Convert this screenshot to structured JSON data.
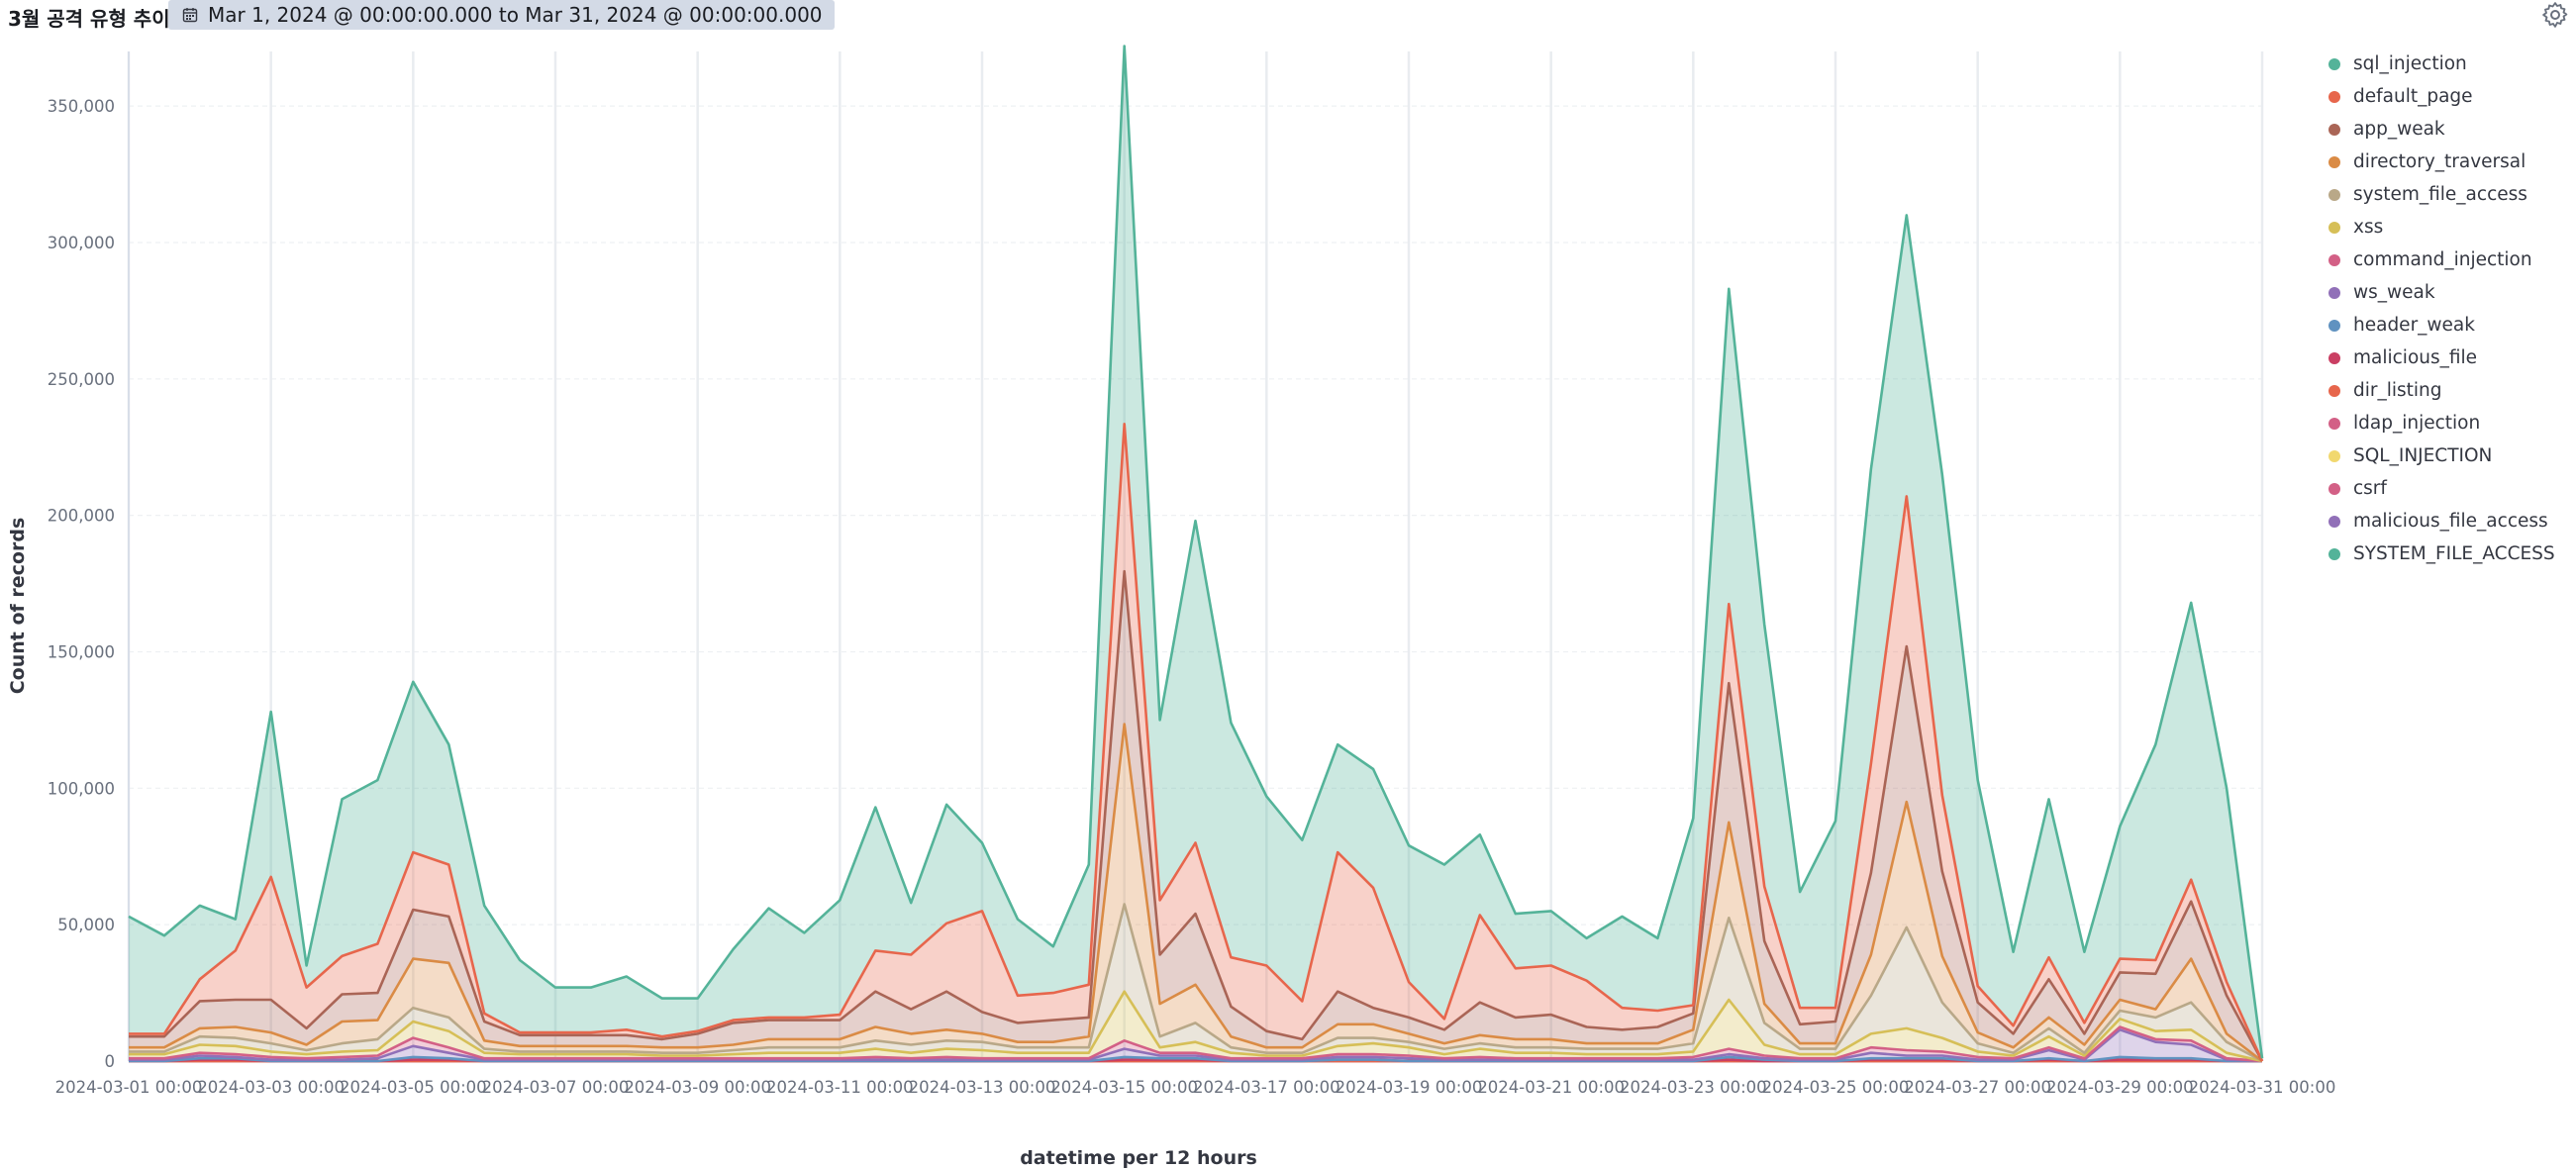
{
  "header": {
    "title": "3월 공격 유형 추이",
    "time_range": "Mar 1, 2024 @ 00:00:00.000 to Mar 31, 2024 @ 00:00:00.000",
    "calendar_icon": "calendar-icon",
    "settings_icon": "gear-icon"
  },
  "chart_data": {
    "type": "area",
    "stacked": true,
    "xlabel": "datetime per 12 hours",
    "ylabel": "Count of records",
    "ylim": [
      0,
      370000
    ],
    "y_ticks": [
      0,
      50000,
      100000,
      150000,
      200000,
      250000,
      300000,
      350000
    ],
    "y_tick_labels": [
      "0",
      "50,000",
      "100,000",
      "150,000",
      "200,000",
      "250,000",
      "300,000",
      "350,000"
    ],
    "x_tick_labels": [
      "2024-03-01 00:00",
      "2024-03-03 00:00",
      "2024-03-05 00:00",
      "2024-03-07 00:00",
      "2024-03-09 00:00",
      "2024-03-11 00:00",
      "2024-03-13 00:00",
      "2024-03-15 00:00",
      "2024-03-17 00:00",
      "2024-03-19 00:00",
      "2024-03-21 00:00",
      "2024-03-23 00:00",
      "2024-03-25 00:00",
      "2024-03-27 00:00",
      "2024-03-29 00:00",
      "2024-03-31 00:00"
    ],
    "grid": true,
    "legend_position": "right",
    "cumulative_top": [
      53000,
      46000,
      57000,
      52000,
      128000,
      35000,
      96000,
      103000,
      139000,
      116000,
      57000,
      37000,
      27000,
      27000,
      31000,
      23000,
      23000,
      41000,
      56000,
      47000,
      59000,
      93000,
      58000,
      94000,
      80000,
      52000,
      42000,
      72000,
      372000,
      125000,
      198000,
      124000,
      97000,
      81000,
      116000,
      107000,
      79000,
      72000,
      83000,
      54000,
      55000,
      45000,
      53000,
      45000,
      89000,
      283000,
      160000,
      62000,
      88000,
      217000,
      310000,
      215000,
      103000,
      40000,
      96000,
      40000,
      86000,
      116000,
      168000,
      100000,
      1000
    ],
    "series": [
      {
        "name": "sql_injection",
        "color": "#54b399",
        "values": [
          42000,
          35000,
          25000,
          8000,
          56000,
          8000,
          53000,
          55000,
          52000,
          41000,
          37000,
          24000,
          14000,
          13000,
          12000,
          12000,
          10000,
          21000,
          36000,
          27000,
          39000,
          44000,
          27000,
          36000,
          24000,
          26000,
          20000,
          23000,
          127000,
          52000,
          103000,
          82000,
          58000,
          58000,
          32000,
          40000,
          44000,
          49000,
          25000,
          18000,
          16000,
          12000,
          19000,
          19000,
          59000,
          110000,
          25000,
          38000,
          55000,
          78000,
          96000,
          64000,
          47000,
          24000,
          40000,
          29000,
          34000,
          52000,
          88000,
          65000,
          0
        ]
      },
      {
        "name": "default_page",
        "color": "#e7664c",
        "values": [
          1000,
          1000,
          8000,
          18000,
          45000,
          15000,
          14000,
          18000,
          21000,
          19000,
          3000,
          1000,
          1000,
          1000,
          2000,
          1000,
          1000,
          1000,
          1000,
          1000,
          2000,
          15000,
          20000,
          25000,
          37000,
          10000,
          10000,
          12000,
          54000,
          20000,
          26000,
          18000,
          24000,
          14000,
          51000,
          44000,
          13000,
          4000,
          32000,
          18000,
          18000,
          17000,
          8000,
          6000,
          3000,
          29000,
          20000,
          6000,
          5000,
          40000,
          55000,
          28000,
          6000,
          3000,
          8000,
          4000,
          5000,
          5000,
          8000,
          5000,
          0
        ]
      },
      {
        "name": "app_weak",
        "color": "#aa6556",
        "values": [
          4000,
          4000,
          10000,
          10000,
          12000,
          6000,
          10000,
          10000,
          18000,
          17000,
          7000,
          4000,
          4000,
          4000,
          4000,
          3000,
          5000,
          8000,
          7000,
          7000,
          7000,
          13000,
          9000,
          14000,
          8000,
          7000,
          8000,
          7000,
          56000,
          18000,
          26000,
          11000,
          6000,
          3000,
          12000,
          6000,
          6000,
          5000,
          12000,
          8000,
          9000,
          6000,
          5000,
          6000,
          6000,
          51000,
          23000,
          7000,
          8000,
          30000,
          57000,
          31000,
          11000,
          5000,
          14000,
          4000,
          10000,
          13000,
          21000,
          14000,
          0
        ]
      },
      {
        "name": "directory_traversal",
        "color": "#da8b45",
        "values": [
          1500,
          1500,
          3000,
          4000,
          4000,
          2000,
          8000,
          7000,
          18000,
          20000,
          3000,
          2000,
          2000,
          2000,
          2000,
          2000,
          2000,
          2000,
          3000,
          3000,
          3000,
          5000,
          4000,
          4000,
          3000,
          2000,
          2000,
          4000,
          66000,
          12000,
          14000,
          4000,
          2000,
          2000,
          5000,
          5000,
          3000,
          2000,
          3000,
          3000,
          3000,
          2000,
          2000,
          2000,
          5000,
          35000,
          7000,
          2000,
          2000,
          15000,
          46000,
          17000,
          4000,
          2000,
          4000,
          3000,
          4000,
          3000,
          16000,
          3000,
          0
        ]
      },
      {
        "name": "system_file_access",
        "color": "#b9a888",
        "values": [
          1000,
          1000,
          3000,
          3000,
          3000,
          1500,
          3000,
          4000,
          5000,
          5000,
          1500,
          1000,
          1000,
          1000,
          1000,
          1000,
          1000,
          1500,
          2000,
          2000,
          2000,
          3000,
          3000,
          3000,
          3000,
          2000,
          2000,
          2000,
          32000,
          4000,
          7000,
          2000,
          1000,
          1000,
          3000,
          2000,
          2000,
          2000,
          2000,
          2000,
          2000,
          2000,
          2000,
          2000,
          3000,
          30000,
          8000,
          2000,
          2000,
          14000,
          37000,
          13000,
          3000,
          1000,
          3000,
          1000,
          3000,
          5000,
          10000,
          4000,
          0
        ]
      },
      {
        "name": "xss",
        "color": "#d6bf57",
        "values": [
          1500,
          1500,
          3000,
          3000,
          2000,
          1500,
          2000,
          2000,
          6000,
          6000,
          2000,
          1500,
          1500,
          1500,
          1500,
          1000,
          1000,
          1500,
          2000,
          2000,
          2000,
          3000,
          2000,
          3000,
          3000,
          2000,
          2000,
          2000,
          18000,
          2000,
          4000,
          2000,
          1000,
          1000,
          3000,
          4000,
          3000,
          1500,
          3000,
          2000,
          2000,
          1500,
          1500,
          1500,
          2000,
          18000,
          4000,
          1500,
          1500,
          5000,
          8000,
          5000,
          2000,
          1000,
          4000,
          1000,
          3000,
          3000,
          4000,
          2000,
          0
        ]
      },
      {
        "name": "command_injection",
        "color": "#d36086",
        "values": [
          500,
          500,
          1000,
          1000,
          1000,
          500,
          1000,
          1000,
          3000,
          2000,
          500,
          500,
          500,
          500,
          500,
          500,
          500,
          500,
          500,
          500,
          500,
          1000,
          500,
          1000,
          500,
          500,
          500,
          500,
          3000,
          1000,
          1000,
          500,
          500,
          500,
          1000,
          1000,
          1000,
          500,
          1000,
          500,
          500,
          500,
          500,
          500,
          1000,
          2000,
          1000,
          500,
          500,
          2000,
          2000,
          1500,
          1000,
          500,
          1000,
          500,
          1000,
          1000,
          1500,
          500,
          0
        ]
      },
      {
        "name": "ws_weak",
        "color": "#9170b8",
        "values": [
          500,
          500,
          1000,
          500,
          500,
          500,
          500,
          1000,
          4000,
          2000,
          500,
          500,
          500,
          500,
          500,
          500,
          500,
          500,
          500,
          500,
          500,
          500,
          500,
          500,
          500,
          500,
          500,
          500,
          3000,
          1000,
          1000,
          500,
          500,
          500,
          1000,
          1000,
          1000,
          500,
          500,
          500,
          500,
          500,
          500,
          500,
          500,
          1000,
          500,
          500,
          500,
          2000,
          1000,
          1000,
          500,
          500,
          3000,
          500,
          10000,
          6000,
          5000,
          500,
          0
        ]
      },
      {
        "name": "header_weak",
        "color": "#6092c0",
        "values": [
          0,
          0,
          500,
          500,
          0,
          0,
          0,
          0,
          1000,
          500,
          0,
          0,
          0,
          0,
          0,
          0,
          0,
          0,
          0,
          0,
          0,
          0,
          0,
          0,
          0,
          0,
          0,
          0,
          1000,
          500,
          500,
          0,
          0,
          0,
          0,
          0,
          0,
          0,
          0,
          0,
          0,
          0,
          0,
          0,
          0,
          1000,
          500,
          0,
          0,
          500,
          500,
          500,
          0,
          0,
          500,
          0,
          1000,
          500,
          500,
          0,
          0
        ]
      },
      {
        "name": "malicious_file",
        "color": "#ca3f63",
        "values": [
          0,
          0,
          500,
          500,
          0,
          0,
          0,
          0,
          500,
          500,
          0,
          0,
          0,
          0,
          0,
          0,
          0,
          0,
          0,
          0,
          0,
          0,
          0,
          0,
          0,
          0,
          0,
          0,
          500,
          500,
          500,
          0,
          0,
          0,
          500,
          500,
          0,
          0,
          0,
          0,
          0,
          0,
          0,
          0,
          0,
          500,
          0,
          0,
          0,
          500,
          500,
          500,
          0,
          0,
          500,
          0,
          500,
          500,
          500,
          0,
          0
        ]
      },
      {
        "name": "dir_listing",
        "color": "#e7664c",
        "values": [
          0,
          0,
          0,
          0,
          0,
          0,
          0,
          0,
          0,
          0,
          0,
          0,
          0,
          0,
          0,
          0,
          0,
          0,
          0,
          0,
          0,
          0,
          0,
          0,
          0,
          0,
          0,
          0,
          0,
          0,
          0,
          0,
          0,
          0,
          0,
          0,
          0,
          0,
          0,
          0,
          0,
          0,
          0,
          0,
          0,
          0,
          0,
          0,
          0,
          0,
          0,
          0,
          0,
          0,
          0,
          0,
          0,
          0,
          0,
          0,
          0
        ]
      },
      {
        "name": "ldap_injection",
        "color": "#d36086",
        "values": [
          0,
          0,
          0,
          0,
          0,
          0,
          0,
          0,
          0,
          0,
          0,
          0,
          0,
          0,
          0,
          0,
          0,
          0,
          0,
          0,
          0,
          0,
          0,
          0,
          0,
          0,
          0,
          0,
          0,
          0,
          0,
          0,
          0,
          0,
          0,
          0,
          0,
          0,
          0,
          0,
          0,
          0,
          0,
          0,
          0,
          0,
          0,
          0,
          0,
          0,
          0,
          0,
          0,
          0,
          0,
          0,
          0,
          0,
          0,
          0,
          0
        ]
      },
      {
        "name": "SQL_INJECTION",
        "color": "#f1d86f",
        "values": [
          0,
          0,
          0,
          0,
          0,
          0,
          0,
          0,
          0,
          0,
          0,
          0,
          0,
          0,
          0,
          0,
          0,
          0,
          0,
          0,
          0,
          0,
          0,
          0,
          0,
          0,
          0,
          0,
          0,
          0,
          0,
          0,
          0,
          0,
          0,
          0,
          0,
          0,
          0,
          0,
          0,
          0,
          0,
          0,
          0,
          0,
          0,
          0,
          0,
          0,
          0,
          0,
          0,
          0,
          0,
          0,
          0,
          0,
          0,
          0,
          0
        ]
      },
      {
        "name": "csrf",
        "color": "#d36086",
        "values": [
          0,
          0,
          0,
          0,
          0,
          0,
          0,
          0,
          0,
          0,
          0,
          0,
          0,
          0,
          0,
          0,
          0,
          0,
          0,
          0,
          0,
          0,
          0,
          0,
          0,
          0,
          0,
          0,
          0,
          0,
          0,
          0,
          0,
          0,
          0,
          0,
          0,
          0,
          0,
          0,
          0,
          0,
          0,
          0,
          0,
          0,
          0,
          0,
          0,
          0,
          0,
          0,
          0,
          0,
          0,
          0,
          0,
          0,
          0,
          0,
          0
        ]
      },
      {
        "name": "malicious_file_access",
        "color": "#9170b8",
        "values": [
          0,
          0,
          0,
          0,
          0,
          0,
          0,
          0,
          0,
          0,
          0,
          0,
          0,
          0,
          0,
          0,
          0,
          0,
          0,
          0,
          0,
          0,
          0,
          0,
          0,
          0,
          0,
          0,
          0,
          0,
          0,
          0,
          0,
          0,
          0,
          0,
          0,
          0,
          0,
          0,
          0,
          0,
          0,
          0,
          0,
          0,
          0,
          0,
          0,
          0,
          0,
          0,
          0,
          0,
          0,
          0,
          0,
          0,
          0,
          0,
          0
        ]
      },
      {
        "name": "SYSTEM_FILE_ACCESS",
        "color": "#54b399",
        "values": [
          0,
          0,
          0,
          0,
          0,
          0,
          0,
          0,
          0,
          0,
          0,
          0,
          0,
          0,
          0,
          0,
          0,
          0,
          0,
          0,
          0,
          0,
          0,
          0,
          0,
          0,
          0,
          0,
          0,
          0,
          0,
          0,
          0,
          0,
          0,
          0,
          0,
          0,
          0,
          0,
          0,
          0,
          0,
          0,
          0,
          0,
          0,
          0,
          0,
          0,
          0,
          0,
          0,
          0,
          0,
          0,
          0,
          0,
          0,
          0,
          0
        ]
      }
    ]
  }
}
